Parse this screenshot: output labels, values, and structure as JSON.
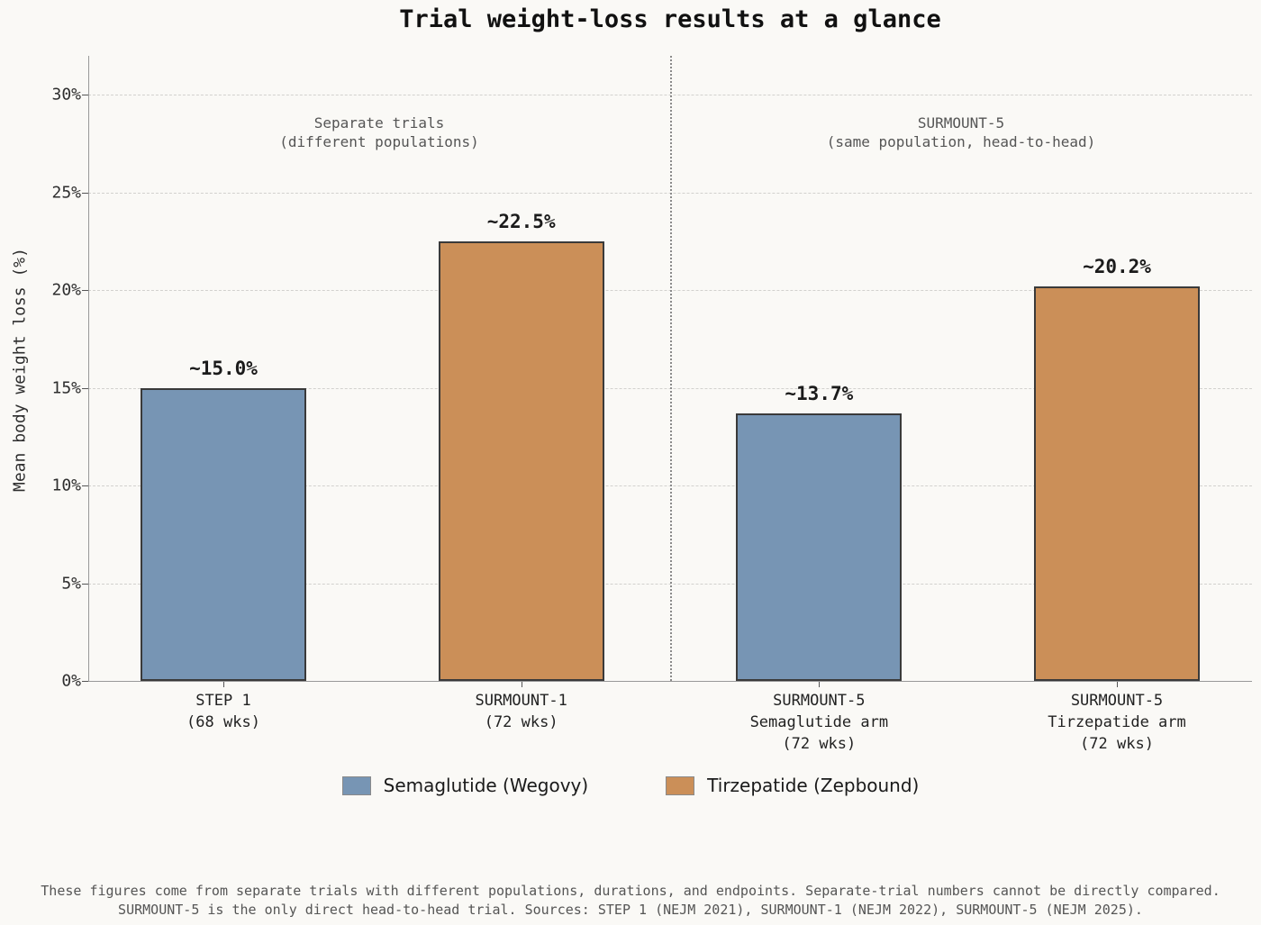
{
  "title": "Trial weight-loss results at a glance",
  "ylabel": "Mean body weight loss (%)",
  "panel_annotations": {
    "left": [
      "Separate trials",
      "(different populations)"
    ],
    "right": [
      "SURMOUNT-5",
      "(same population, head-to-head)"
    ]
  },
  "legend": {
    "items": [
      {
        "label": "Semaglutide (Wegovy)",
        "color": "#7795b4"
      },
      {
        "label": "Tirzepatide (Zepbound)",
        "color": "#cb8f58"
      }
    ]
  },
  "footer": {
    "line1": "These figures come from separate trials with different populations, durations, and endpoints. Separate-trial numbers cannot be directly compared.",
    "line2": "SURMOUNT-5 is the only direct head-to-head trial. Sources: STEP 1 (NEJM 2021), SURMOUNT-1 (NEJM 2022), SURMOUNT-5 (NEJM 2025)."
  },
  "colors": {
    "semaglutide": "#7795b4",
    "tirzepatide": "#cb8f58",
    "bar_edge": "#3a3a3a",
    "grid": "#d2d1ce",
    "spine": "#999999",
    "divider": "#8a8a8a",
    "muted_text": "#555555",
    "background": "#faf9f6"
  },
  "chart_data": {
    "type": "bar",
    "title": "Trial weight-loss results at a glance",
    "xlabel": "",
    "ylabel": "Mean body weight loss (%)",
    "categories": [
      [
        "STEP 1",
        "(68 wks)"
      ],
      [
        "SURMOUNT-1",
        "(72 wks)"
      ],
      [
        "SURMOUNT-5",
        "Semaglutide arm",
        "(72 wks)"
      ],
      [
        "SURMOUNT-5",
        "Tirzepatide arm",
        "(72 wks)"
      ]
    ],
    "values": [
      15.0,
      22.5,
      13.7,
      20.2
    ],
    "value_labels": [
      "~15.0%",
      "~22.5%",
      "~13.7%",
      "~20.2%"
    ],
    "bar_series": [
      "Semaglutide (Wegovy)",
      "Tirzepatide (Zepbound)",
      "Semaglutide (Wegovy)",
      "Tirzepatide (Zepbound)"
    ],
    "bar_colors": [
      "#7795b4",
      "#cb8f58",
      "#7795b4",
      "#cb8f58"
    ],
    "yticks": [
      0,
      5,
      10,
      15,
      20,
      25,
      30
    ],
    "ytick_labels": [
      "0%",
      "5%",
      "10%",
      "15%",
      "20%",
      "25%",
      "30%"
    ],
    "ylim": [
      0,
      32
    ],
    "grid": "horizontal dashed",
    "legend_position": "bottom center",
    "divider_between_categories": [
      1,
      2
    ],
    "panel_labels": [
      "Separate trials (different populations)",
      "SURMOUNT-5 (same population, head-to-head)"
    ]
  }
}
